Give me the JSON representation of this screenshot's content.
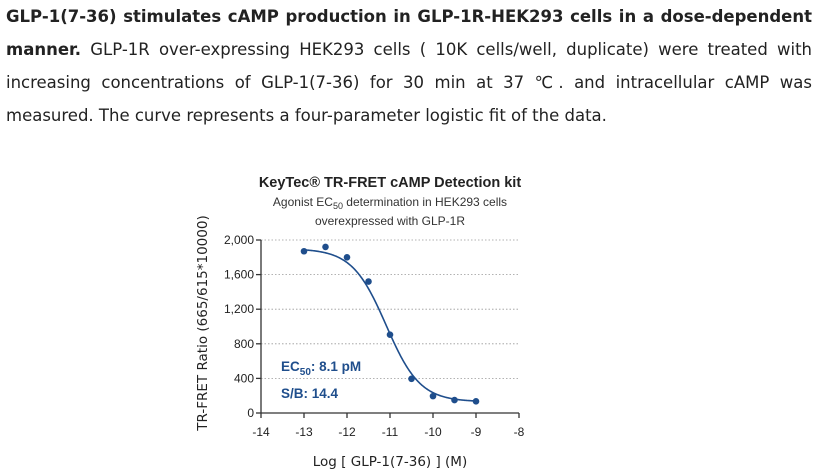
{
  "caption": {
    "bold_text": "GLP-1(7-36) stimulates cAMP production in GLP-1R-HEK293 cells in a dose-dependent manner.",
    "text": " GLP-1R over-expressing HEK293 cells ( 10K cells/well, duplicate) were treated with increasing concentrations of GLP-1(7-36) for 30 min at 37 ℃. and intracellular cAMP was measured. The curve represents a four-parameter logistic fit of the data."
  },
  "chart_data": {
    "type": "scatter",
    "title": "KeyTec® TR-FRET cAMP Detection kit",
    "subtitle_line1_pre": "Agonist EC",
    "subtitle_line1_sub": "50",
    "subtitle_line1_post": " determination in HEK293 cells",
    "subtitle_line2": "overexpressed with GLP-1R",
    "xlabel": "Log [ GLP-1(7-36) ] (M)",
    "ylabel": "TR-FRET Ratio (665/615*10000)",
    "xlim": [
      -14,
      -8
    ],
    "ylim": [
      0,
      2000
    ],
    "xticks": [
      -14,
      -13,
      -12,
      -11,
      -10,
      -9,
      -8
    ],
    "xtick_labels": [
      "-14",
      "-13",
      "-12",
      "-11",
      "-10",
      "-9",
      "-8"
    ],
    "yticks": [
      0,
      400,
      800,
      1200,
      1600,
      2000
    ],
    "ytick_labels": [
      "0",
      "400",
      "800",
      "1,200",
      "1,600",
      "2,000"
    ],
    "grid": "dotted horizontal",
    "points": {
      "x": [
        -13,
        -12.5,
        -12,
        -11.5,
        -11,
        -10.5,
        -10,
        -9.5,
        -9
      ],
      "y": [
        1870,
        1920,
        1800,
        1520,
        905,
        395,
        195,
        150,
        135
      ]
    },
    "fit": {
      "model": "four-parameter logistic",
      "top": 1900,
      "bottom": 130,
      "log_ec50": -11.09,
      "hill": 1.1
    },
    "annotations": {
      "ec50_pre": "EC",
      "ec50_sub": "50",
      "ec50_post": ": 8.1 pM",
      "sb": "S/B: 14.4"
    },
    "colors": {
      "curve": "#1f4e8c",
      "points": "#1f4e8c",
      "annotation": "#1f4e8c",
      "grid": "#999999",
      "axis": "#333333"
    }
  }
}
